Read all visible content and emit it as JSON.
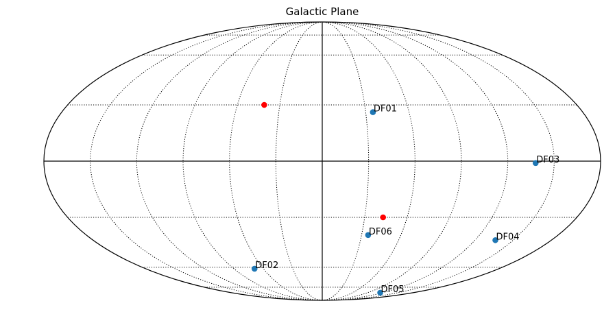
{
  "chart_data": {
    "type": "scatter",
    "projection": "mollweide",
    "title": "Galactic Plane",
    "xlabel": "",
    "ylabel": "",
    "longitude_range_deg": [
      -180,
      180
    ],
    "latitude_range_deg": [
      -90,
      90
    ],
    "grid": true,
    "graticule": {
      "meridians_deg": [
        -150,
        -120,
        -90,
        -60,
        -30,
        0,
        30,
        60,
        90,
        120,
        150
      ],
      "parallels_deg": [
        -75,
        -60,
        -30,
        0,
        30,
        60,
        75
      ]
    },
    "series": [
      {
        "color": "#1f77b4",
        "points": [
          {
            "label": "DF01",
            "lon": 35,
            "lat": 26
          },
          {
            "label": "DF02",
            "lon": -69,
            "lat": -61
          },
          {
            "label": "DF03",
            "lon": 138,
            "lat": -1
          },
          {
            "label": "DF04",
            "lon": 136,
            "lat": -43
          },
          {
            "label": "DF05",
            "lon": 115,
            "lat": -80
          },
          {
            "label": "DF06",
            "lon": 35,
            "lat": -40
          }
        ]
      },
      {
        "color": "#ff0000",
        "points": [
          {
            "label": "",
            "lon": -41,
            "lat": 30
          },
          {
            "label": "",
            "lon": 43,
            "lat": -30
          }
        ]
      }
    ]
  }
}
